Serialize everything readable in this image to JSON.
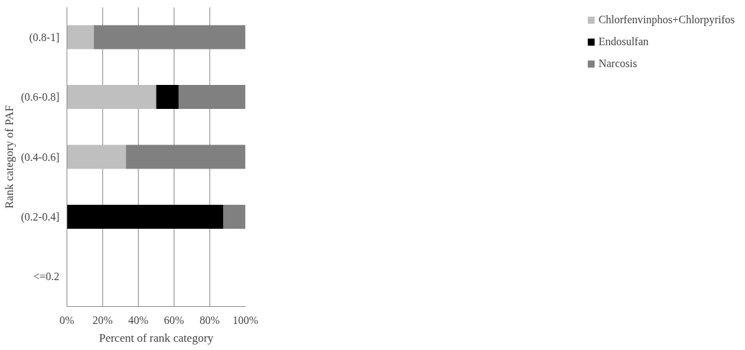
{
  "chart_data": {
    "type": "bar",
    "orientation": "horizontal",
    "stacked": true,
    "xlabel": "Percent of rank category",
    "ylabel": "Rank category of PAF",
    "categories": [
      "(0.8-1]",
      "(0.6-0.8]",
      "(0.4-0.6]",
      "(0.2-0.4]",
      "<=0.2"
    ],
    "series": [
      {
        "name": "Chlorfenvinphos+Chlorpyrifos",
        "color": "#bfbfbf",
        "values": [
          15,
          50,
          33,
          0,
          null
        ]
      },
      {
        "name": "Endosulfan",
        "color": "#000000",
        "values": [
          0,
          12.5,
          0,
          87.5,
          null
        ]
      },
      {
        "name": "Narcosis",
        "color": "#808080",
        "values": [
          85,
          37.5,
          67,
          12.5,
          null
        ]
      }
    ],
    "xlim": [
      0,
      100
    ],
    "xticks": [
      {
        "value": 0,
        "label": "0%"
      },
      {
        "value": 20,
        "label": "20%"
      },
      {
        "value": 40,
        "label": "40%"
      },
      {
        "value": 60,
        "label": "60%"
      },
      {
        "value": 80,
        "label": "80%"
      },
      {
        "value": 100,
        "label": "100%"
      }
    ],
    "grid": "x",
    "legend": "right"
  }
}
